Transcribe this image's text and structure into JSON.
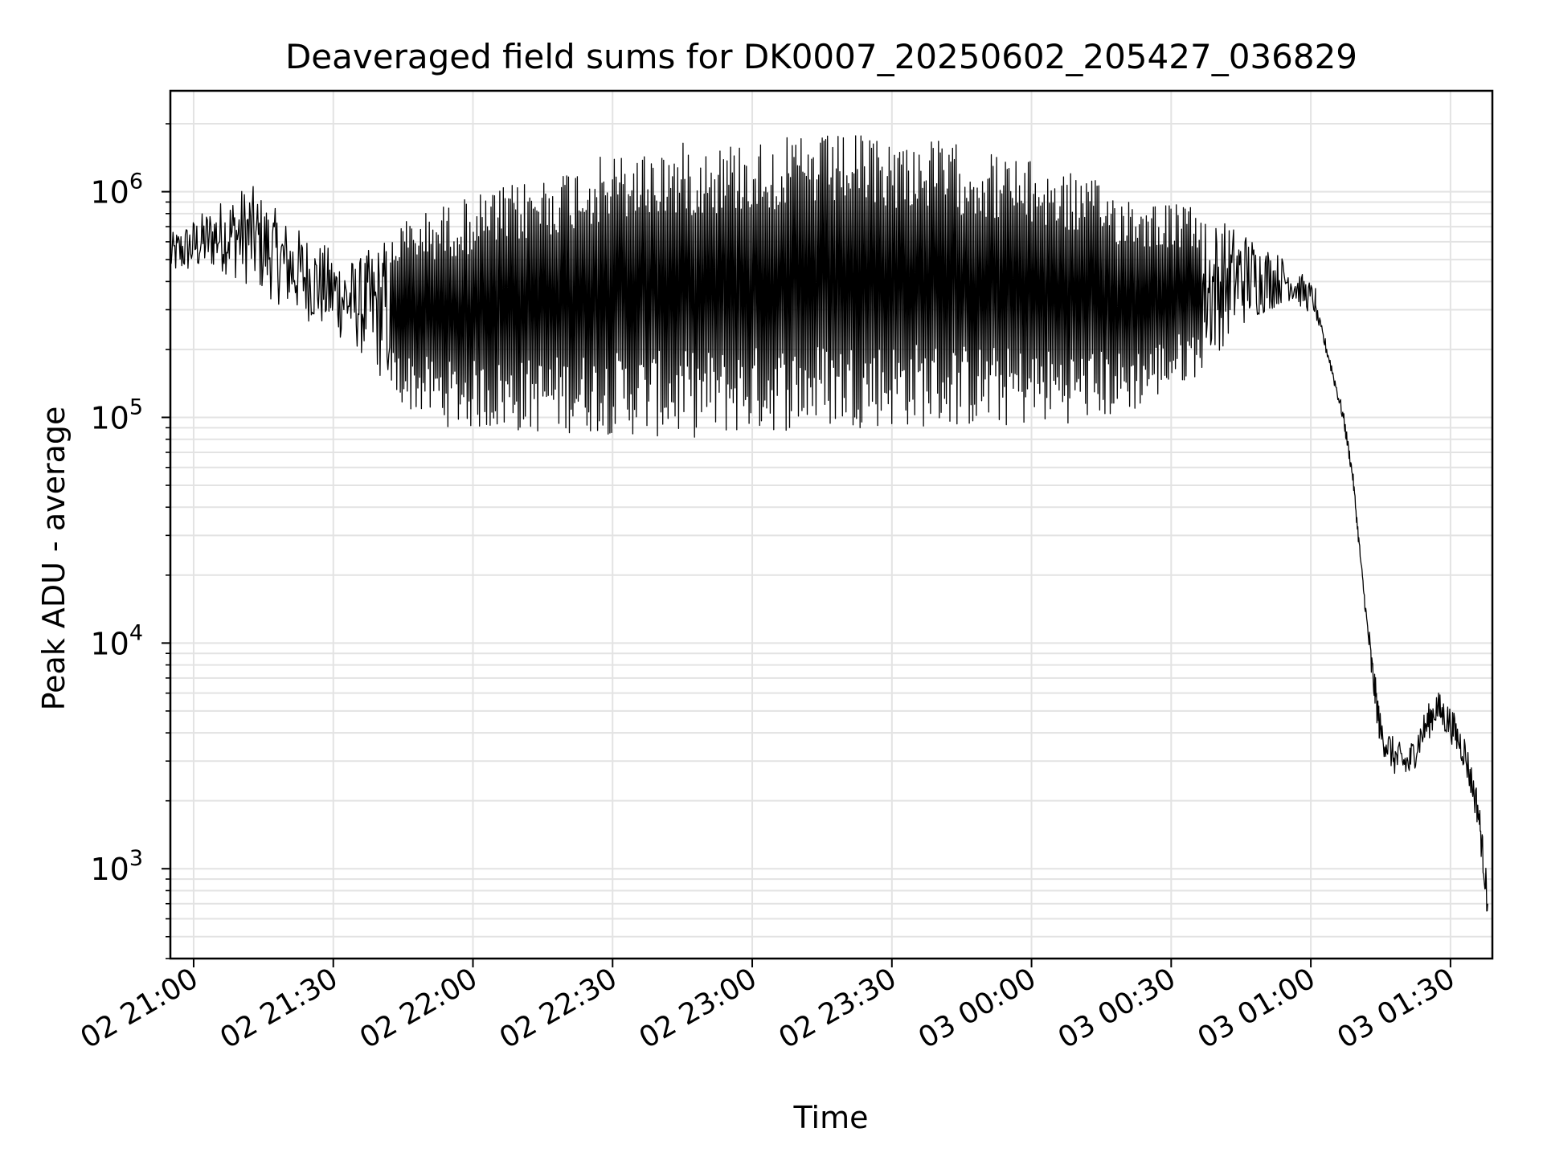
{
  "chart_data": {
    "type": "line",
    "title": "Deaveraged field sums for DK0007_20250602_205427_036829",
    "xlabel": "Time",
    "ylabel": "Peak ADU - average",
    "yscale": "log",
    "ylim": [
      400,
      2800000
    ],
    "xlim": [
      "2025-06-02 20:55",
      "2025-06-03 01:39"
    ],
    "grid": true,
    "colors": {
      "line": "#000000",
      "grid": "#e3e3e3",
      "axis": "#000000"
    },
    "x_ticks": [
      {
        "t": "2025-06-02 21:00",
        "label": "02 21:00"
      },
      {
        "t": "2025-06-02 21:30",
        "label": "02 21:30"
      },
      {
        "t": "2025-06-02 22:00",
        "label": "02 22:00"
      },
      {
        "t": "2025-06-02 22:30",
        "label": "02 22:30"
      },
      {
        "t": "2025-06-02 23:00",
        "label": "02 23:00"
      },
      {
        "t": "2025-06-02 23:30",
        "label": "02 23:30"
      },
      {
        "t": "2025-06-03 00:00",
        "label": "03 00:00"
      },
      {
        "t": "2025-06-03 00:30",
        "label": "03 00:30"
      },
      {
        "t": "2025-06-03 01:00",
        "label": "03 01:00"
      },
      {
        "t": "2025-06-03 01:30",
        "label": "03 01:30"
      }
    ],
    "y_ticks": [
      {
        "v": 1000,
        "base": "10",
        "exp": "3"
      },
      {
        "v": 10000,
        "base": "10",
        "exp": "4"
      },
      {
        "v": 100000,
        "base": "10",
        "exp": "5"
      },
      {
        "v": 1000000,
        "base": "10",
        "exp": "6"
      }
    ],
    "series": [
      {
        "color": "#000000",
        "envelope": [
          {
            "t": "2025-06-02 20:55",
            "low": 420000,
            "high": 650000
          },
          {
            "t": "2025-06-02 21:05",
            "low": 450000,
            "high": 900000
          },
          {
            "t": "2025-06-02 21:12",
            "low": 380000,
            "high": 1100000
          },
          {
            "t": "2025-06-02 21:20",
            "low": 300000,
            "high": 750000
          },
          {
            "t": "2025-06-02 21:27",
            "low": 250000,
            "high": 600000
          },
          {
            "t": "2025-06-02 21:35",
            "low": 200000,
            "high": 500000
          },
          {
            "t": "2025-06-02 21:45",
            "low": 110000,
            "high": 750000
          },
          {
            "t": "2025-06-02 21:55",
            "low": 90000,
            "high": 900000
          },
          {
            "t": "2025-06-02 22:10",
            "low": 85000,
            "high": 1100000
          },
          {
            "t": "2025-06-02 22:25",
            "low": 85000,
            "high": 1400000
          },
          {
            "t": "2025-06-02 22:45",
            "low": 80000,
            "high": 1650000
          },
          {
            "t": "2025-06-02 23:00",
            "low": 85000,
            "high": 1700000
          },
          {
            "t": "2025-06-02 23:20",
            "low": 90000,
            "high": 1800000
          },
          {
            "t": "2025-06-02 23:40",
            "low": 90000,
            "high": 1700000
          },
          {
            "t": "2025-06-02 23:55",
            "low": 90000,
            "high": 1450000
          },
          {
            "t": "2025-06-03 00:10",
            "low": 95000,
            "high": 1200000
          },
          {
            "t": "2025-06-03 00:20",
            "low": 100000,
            "high": 1000000
          },
          {
            "t": "2025-06-03 00:35",
            "low": 150000,
            "high": 850000
          },
          {
            "t": "2025-06-03 00:45",
            "low": 250000,
            "high": 700000
          },
          {
            "t": "2025-06-03 00:55",
            "low": 330000,
            "high": 500000
          },
          {
            "t": "2025-06-03 01:01",
            "low": 280000,
            "high": 380000
          }
        ],
        "tail": [
          {
            "t": "2025-06-03 01:01",
            "v": 300000
          },
          {
            "t": "2025-06-03 01:04",
            "v": 180000
          },
          {
            "t": "2025-06-03 01:07",
            "v": 100000
          },
          {
            "t": "2025-06-03 01:09",
            "v": 55000
          },
          {
            "t": "2025-06-03 01:11",
            "v": 20000
          },
          {
            "t": "2025-06-03 01:13",
            "v": 8000
          },
          {
            "t": "2025-06-03 01:15",
            "v": 4000
          },
          {
            "t": "2025-06-03 01:18",
            "v": 3100
          },
          {
            "t": "2025-06-03 01:21",
            "v": 2900
          },
          {
            "t": "2025-06-03 01:24",
            "v": 4000
          },
          {
            "t": "2025-06-03 01:27",
            "v": 5200
          },
          {
            "t": "2025-06-03 01:30",
            "v": 4400
          },
          {
            "t": "2025-06-03 01:33",
            "v": 3300
          },
          {
            "t": "2025-06-03 01:36",
            "v": 1800
          },
          {
            "t": "2025-06-03 01:38",
            "v": 700
          }
        ]
      }
    ]
  }
}
